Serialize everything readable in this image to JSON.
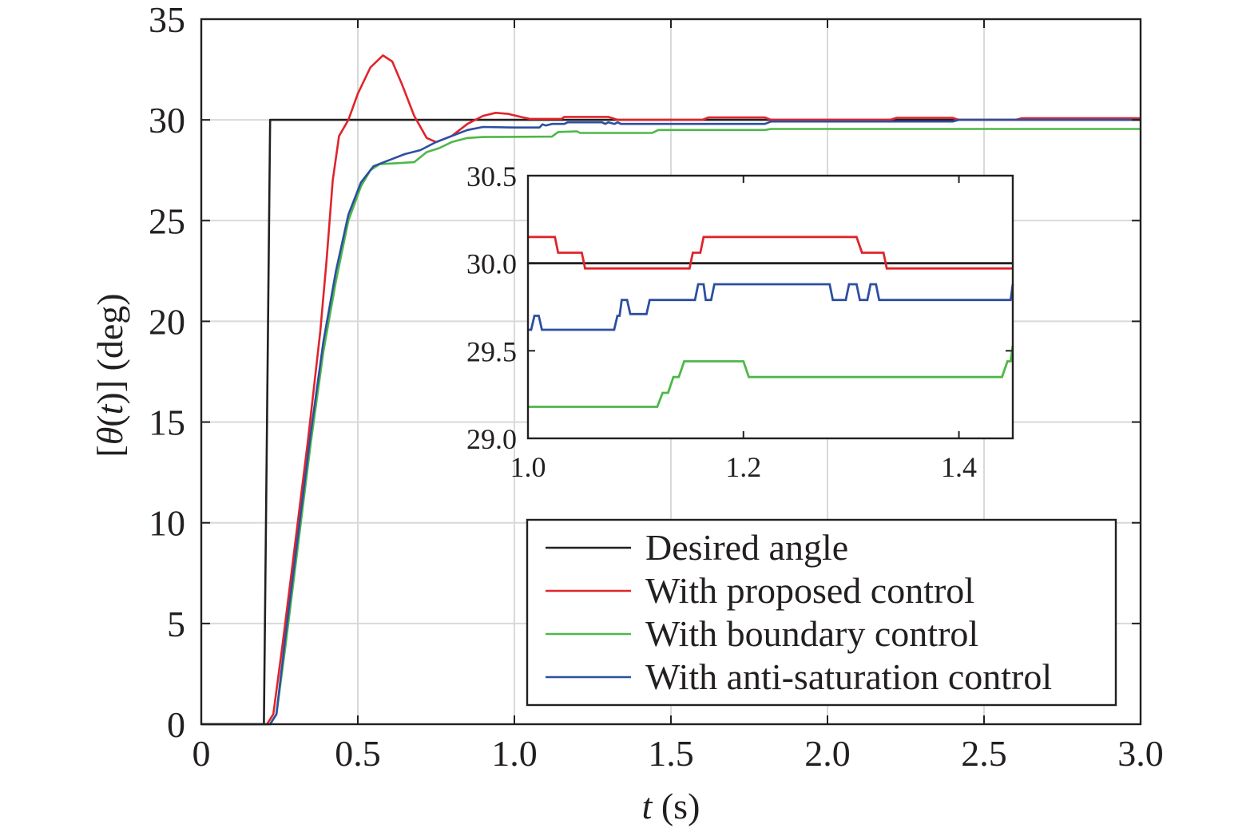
{
  "chart_data": {
    "type": "line",
    "xlabel": {
      "var": "t",
      "unit": "(s)"
    },
    "ylabel": {
      "pre": "[",
      "theta": "θ",
      "open": "(",
      "var": "t",
      "close": ")]",
      "unit": "(deg)"
    },
    "xlim": [
      0,
      3.0
    ],
    "ylim": [
      0,
      35
    ],
    "xticks": [
      "0",
      "0.5",
      "1.0",
      "1.5",
      "2.0",
      "2.5",
      "3.0"
    ],
    "xtick_values": [
      0,
      0.5,
      1.0,
      1.5,
      2.0,
      2.5,
      3.0
    ],
    "yticks": [
      "0",
      "5",
      "10",
      "15",
      "20",
      "25",
      "30",
      "35"
    ],
    "ytick_values": [
      0,
      5,
      10,
      15,
      20,
      25,
      30,
      35
    ],
    "grid": true,
    "legend_position": "lower-right",
    "series": [
      {
        "name": "Desired angle",
        "color": "#231f20",
        "points": [
          [
            0,
            0
          ],
          [
            0.2,
            0
          ],
          [
            0.22,
            30
          ],
          [
            3.0,
            30
          ]
        ]
      },
      {
        "name": "With proposed control",
        "color": "#e0242b",
        "points": [
          [
            0,
            0
          ],
          [
            0.21,
            0
          ],
          [
            0.23,
            0.5
          ],
          [
            0.26,
            4
          ],
          [
            0.3,
            9
          ],
          [
            0.34,
            14
          ],
          [
            0.38,
            19.5
          ],
          [
            0.4,
            23
          ],
          [
            0.42,
            27
          ],
          [
            0.44,
            29.2
          ],
          [
            0.47,
            30
          ],
          [
            0.5,
            31.3
          ],
          [
            0.54,
            32.6
          ],
          [
            0.58,
            33.2
          ],
          [
            0.61,
            32.9
          ],
          [
            0.64,
            31.8
          ],
          [
            0.68,
            30.2
          ],
          [
            0.72,
            29.1
          ],
          [
            0.75,
            28.9
          ],
          [
            0.8,
            29.2
          ],
          [
            0.85,
            29.8
          ],
          [
            0.9,
            30.2
          ],
          [
            0.94,
            30.35
          ],
          [
            0.98,
            30.3
          ],
          [
            1.02,
            30.15
          ],
          [
            1.05,
            30.05
          ],
          [
            1.15,
            30.05
          ],
          [
            1.16,
            30.15
          ],
          [
            1.3,
            30.15
          ],
          [
            1.33,
            30.0
          ],
          [
            1.6,
            30.0
          ],
          [
            1.62,
            30.12
          ],
          [
            1.8,
            30.12
          ],
          [
            1.82,
            30.0
          ],
          [
            2.2,
            30.0
          ],
          [
            2.22,
            30.1
          ],
          [
            2.4,
            30.1
          ],
          [
            2.42,
            30.0
          ],
          [
            2.6,
            30.0
          ],
          [
            2.62,
            30.08
          ],
          [
            3.0,
            30.08
          ]
        ]
      },
      {
        "name": "With boundary control",
        "color": "#4db848",
        "points": [
          [
            0,
            0
          ],
          [
            0.22,
            0
          ],
          [
            0.24,
            0.5
          ],
          [
            0.27,
            4
          ],
          [
            0.31,
            9
          ],
          [
            0.35,
            14
          ],
          [
            0.39,
            18.5
          ],
          [
            0.43,
            22
          ],
          [
            0.47,
            25
          ],
          [
            0.51,
            26.7
          ],
          [
            0.54,
            27.5
          ],
          [
            0.57,
            27.8
          ],
          [
            0.68,
            27.9
          ],
          [
            0.72,
            28.4
          ],
          [
            0.76,
            28.6
          ],
          [
            0.8,
            28.9
          ],
          [
            0.85,
            29.1
          ],
          [
            0.9,
            29.15
          ],
          [
            1.12,
            29.17
          ],
          [
            1.14,
            29.4
          ],
          [
            1.2,
            29.43
          ],
          [
            1.21,
            29.35
          ],
          [
            1.44,
            29.35
          ],
          [
            1.46,
            29.5
          ],
          [
            1.8,
            29.5
          ],
          [
            1.82,
            29.55
          ],
          [
            3.0,
            29.55
          ]
        ]
      },
      {
        "name": "With anti-saturation control",
        "color": "#2d4fa1",
        "points": [
          [
            0,
            0
          ],
          [
            0.22,
            0
          ],
          [
            0.24,
            0.5
          ],
          [
            0.27,
            4.5
          ],
          [
            0.31,
            9.5
          ],
          [
            0.35,
            14.5
          ],
          [
            0.39,
            19
          ],
          [
            0.43,
            22.5
          ],
          [
            0.47,
            25.3
          ],
          [
            0.51,
            26.9
          ],
          [
            0.55,
            27.7
          ],
          [
            0.6,
            28.0
          ],
          [
            0.65,
            28.3
          ],
          [
            0.7,
            28.5
          ],
          [
            0.75,
            28.9
          ],
          [
            0.8,
            29.2
          ],
          [
            0.85,
            29.5
          ],
          [
            0.9,
            29.65
          ],
          [
            1.0,
            29.62
          ],
          [
            1.08,
            29.62
          ],
          [
            1.09,
            29.78
          ],
          [
            1.1,
            29.72
          ],
          [
            1.12,
            29.8
          ],
          [
            1.16,
            29.8
          ],
          [
            1.17,
            29.88
          ],
          [
            1.28,
            29.88
          ],
          [
            1.29,
            29.8
          ],
          [
            1.3,
            29.88
          ],
          [
            1.32,
            29.8
          ],
          [
            1.33,
            29.88
          ],
          [
            1.34,
            29.8
          ],
          [
            1.8,
            29.8
          ],
          [
            1.82,
            29.92
          ],
          [
            2.4,
            29.92
          ],
          [
            2.42,
            30.0
          ],
          [
            3.0,
            30.0
          ]
        ]
      }
    ],
    "inset": {
      "xlim": [
        1.0,
        1.45
      ],
      "ylim": [
        29.0,
        30.5
      ],
      "xticks": [
        "1.0",
        "1.2",
        "1.4"
      ],
      "xtick_values": [
        1.0,
        1.2,
        1.4
      ],
      "yticks": [
        "29.0",
        "29.5",
        "30.0",
        "30.5"
      ],
      "ytick_values": [
        29.0,
        29.5,
        30.0,
        30.5
      ],
      "series": [
        {
          "name": "Desired angle",
          "color": "#231f20",
          "points": [
            [
              1.0,
              30.0
            ],
            [
              1.45,
              30.0
            ]
          ]
        },
        {
          "name": "With proposed control",
          "color": "#e0242b",
          "points": [
            [
              1.0,
              30.15
            ],
            [
              1.025,
              30.15
            ],
            [
              1.028,
              30.06
            ],
            [
              1.05,
              30.06
            ],
            [
              1.053,
              29.97
            ],
            [
              1.15,
              29.97
            ],
            [
              1.153,
              30.06
            ],
            [
              1.16,
              30.06
            ],
            [
              1.163,
              30.15
            ],
            [
              1.305,
              30.15
            ],
            [
              1.31,
              30.06
            ],
            [
              1.33,
              30.06
            ],
            [
              1.333,
              29.97
            ],
            [
              1.45,
              29.97
            ]
          ]
        },
        {
          "name": "With boundary control",
          "color": "#4db848",
          "points": [
            [
              1.0,
              29.18
            ],
            [
              1.12,
              29.18
            ],
            [
              1.125,
              29.26
            ],
            [
              1.13,
              29.26
            ],
            [
              1.135,
              29.35
            ],
            [
              1.14,
              29.35
            ],
            [
              1.145,
              29.44
            ],
            [
              1.2,
              29.44
            ],
            [
              1.205,
              29.35
            ],
            [
              1.44,
              29.35
            ],
            [
              1.445,
              29.44
            ],
            [
              1.448,
              29.44
            ],
            [
              1.45,
              29.53
            ]
          ]
        },
        {
          "name": "With anti-saturation control",
          "color": "#2d4fa1",
          "points": [
            [
              1.0,
              29.62
            ],
            [
              1.003,
              29.62
            ],
            [
              1.006,
              29.7
            ],
            [
              1.01,
              29.7
            ],
            [
              1.013,
              29.62
            ],
            [
              1.08,
              29.62
            ],
            [
              1.083,
              29.7
            ],
            [
              1.085,
              29.7
            ],
            [
              1.087,
              29.79
            ],
            [
              1.092,
              29.79
            ],
            [
              1.095,
              29.71
            ],
            [
              1.11,
              29.71
            ],
            [
              1.113,
              29.79
            ],
            [
              1.155,
              29.79
            ],
            [
              1.158,
              29.88
            ],
            [
              1.163,
              29.88
            ],
            [
              1.165,
              29.79
            ],
            [
              1.17,
              29.79
            ],
            [
              1.173,
              29.88
            ],
            [
              1.28,
              29.88
            ],
            [
              1.283,
              29.79
            ],
            [
              1.295,
              29.79
            ],
            [
              1.298,
              29.88
            ],
            [
              1.305,
              29.88
            ],
            [
              1.308,
              29.79
            ],
            [
              1.315,
              29.79
            ],
            [
              1.318,
              29.88
            ],
            [
              1.323,
              29.88
            ],
            [
              1.326,
              29.79
            ],
            [
              1.448,
              29.79
            ],
            [
              1.45,
              29.88
            ]
          ]
        }
      ]
    }
  }
}
